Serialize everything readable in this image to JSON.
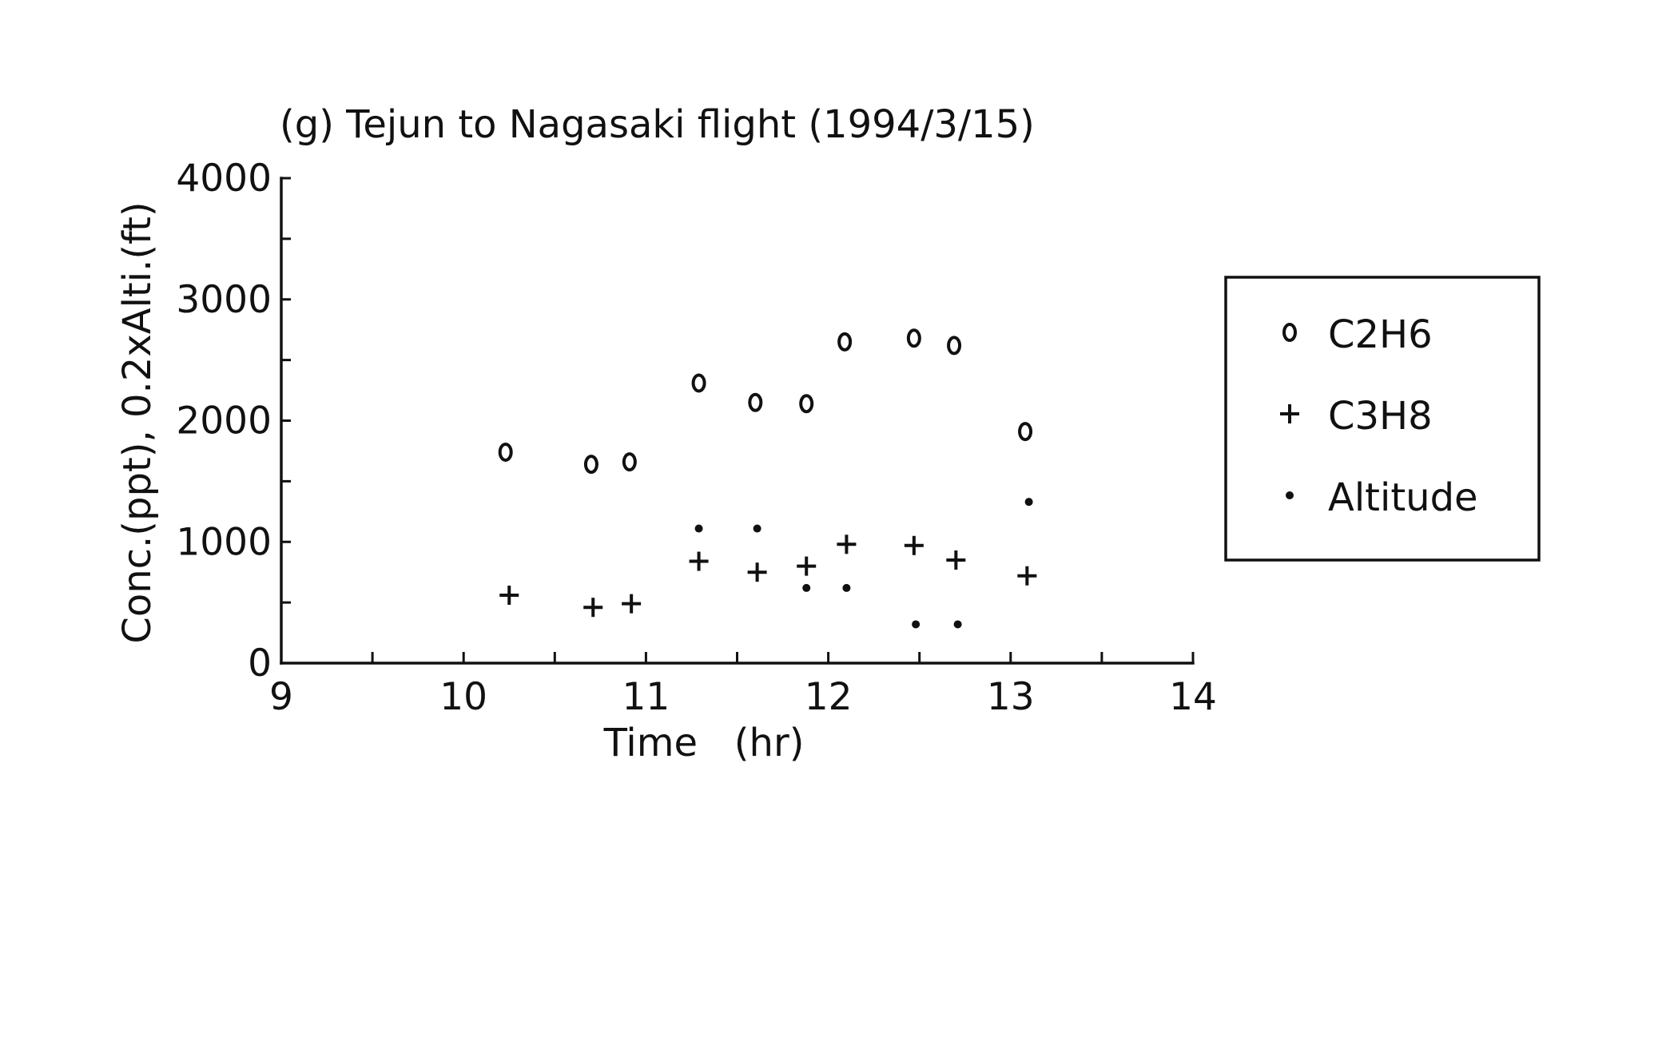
{
  "chart_data": {
    "type": "scatter",
    "title": "(g) Tejun to Nagasaki flight (1994/3/15)",
    "xlabel": "Time   (hr)",
    "ylabel": "Conc.(ppt), 0.2xAlti.(ft)",
    "xlim": [
      9,
      14
    ],
    "ylim": [
      0,
      4000
    ],
    "x_ticks": [
      "9",
      "10",
      "11",
      "12",
      "13",
      "14"
    ],
    "y_ticks": [
      "0",
      "1000",
      "2000",
      "3000",
      "4000"
    ],
    "x_minor_step": 0.5,
    "y_minor_step": 500,
    "grid": false,
    "legend_placement": "right",
    "series": [
      {
        "name": "C2H6",
        "marker": "o",
        "x": [
          10.23,
          10.7,
          10.91,
          11.29,
          11.6,
          11.88,
          12.09,
          12.47,
          12.69,
          13.08
        ],
        "y": [
          1740,
          1640,
          1660,
          2310,
          2150,
          2140,
          2650,
          2680,
          2620,
          1910
        ]
      },
      {
        "name": "C3H8",
        "marker": "+",
        "x": [
          10.25,
          10.71,
          10.92,
          11.29,
          11.61,
          11.88,
          12.1,
          12.47,
          12.7,
          13.09
        ],
        "y": [
          560,
          460,
          490,
          840,
          750,
          800,
          980,
          970,
          850,
          720
        ]
      },
      {
        "name": "Altitude",
        "marker": ".",
        "x": [
          11.29,
          11.61,
          11.88,
          12.1,
          12.48,
          12.71,
          13.1
        ],
        "y": [
          1110,
          1110,
          620,
          620,
          320,
          320,
          1330
        ]
      }
    ]
  }
}
